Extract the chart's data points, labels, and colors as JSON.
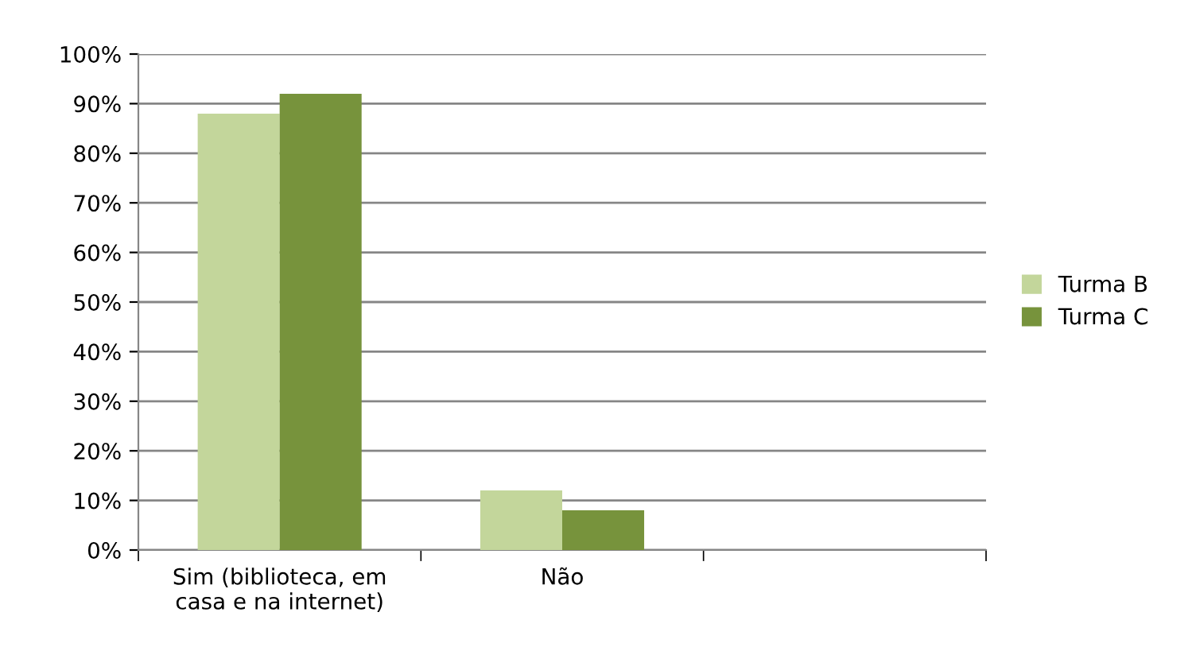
{
  "chart_data": {
    "type": "bar",
    "categories": [
      "Sim (biblioteca, em\ncasa e na internet)",
      "Não",
      null
    ],
    "series": [
      {
        "name": "Turma B",
        "color": "#c3d69b",
        "values": [
          88,
          12,
          null
        ]
      },
      {
        "name": "Turma C",
        "color": "#77933c",
        "values": [
          92,
          8,
          null
        ]
      }
    ],
    "ylim": [
      0,
      100
    ],
    "yticks": [
      {
        "value": 0,
        "label": "0%"
      },
      {
        "value": 10,
        "label": "10%"
      },
      {
        "value": 20,
        "label": "20%"
      },
      {
        "value": 30,
        "label": "30%"
      },
      {
        "value": 40,
        "label": "40%"
      },
      {
        "value": 50,
        "label": "50%"
      },
      {
        "value": 60,
        "label": "60%"
      },
      {
        "value": 70,
        "label": "70%"
      },
      {
        "value": 80,
        "label": "80%"
      },
      {
        "value": 90,
        "label": "90%"
      },
      {
        "value": 100,
        "label": "100%"
      }
    ],
    "grid": "y",
    "legend": "right"
  }
}
